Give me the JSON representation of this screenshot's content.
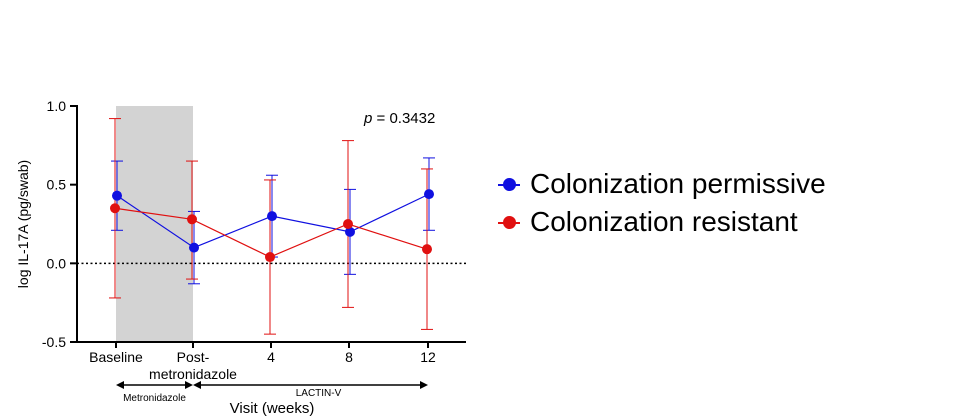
{
  "chart_data": {
    "type": "line",
    "categories": [
      "Baseline",
      "Post-\nmetronidazole",
      "4",
      "8",
      "12"
    ],
    "ylabel": "log IL-17A (pg/swab)",
    "xlabel": "Visit (weeks)",
    "ylim": [
      -0.5,
      1.0
    ],
    "yticks": [
      "1.0",
      "0.5",
      "0.0",
      "-0.5"
    ],
    "yticks_values": [
      1.0,
      0.5,
      0.0,
      -0.5
    ],
    "annotation": "= 0.3432",
    "annotation_p": "p",
    "reference_line": 0.0,
    "shaded_interval": [
      "Baseline",
      "Post-\nmetronidazole"
    ],
    "periods": [
      {
        "label": "Metronidazole",
        "from": "Baseline",
        "to": "Post-\nmetronidazole"
      },
      {
        "label": "LACTIN-V",
        "from": "Post-\nmetronidazole",
        "to": "12"
      }
    ],
    "series": [
      {
        "name": "Colonization permissive",
        "color": "#1010e0",
        "values": [
          0.43,
          0.1,
          0.3,
          0.2,
          0.44
        ],
        "upper": [
          0.65,
          0.33,
          0.56,
          0.47,
          0.67
        ],
        "lower": [
          0.21,
          -0.13,
          0.04,
          -0.07,
          0.21
        ]
      },
      {
        "name": "Colonization resistant",
        "color": "#e01010",
        "values": [
          0.35,
          0.28,
          0.04,
          0.25,
          0.09
        ],
        "upper": [
          0.92,
          0.65,
          0.53,
          0.78,
          0.6
        ],
        "lower": [
          -0.22,
          -0.1,
          -0.45,
          -0.28,
          -0.42
        ]
      }
    ],
    "legend_position": "right",
    "grid": false
  }
}
